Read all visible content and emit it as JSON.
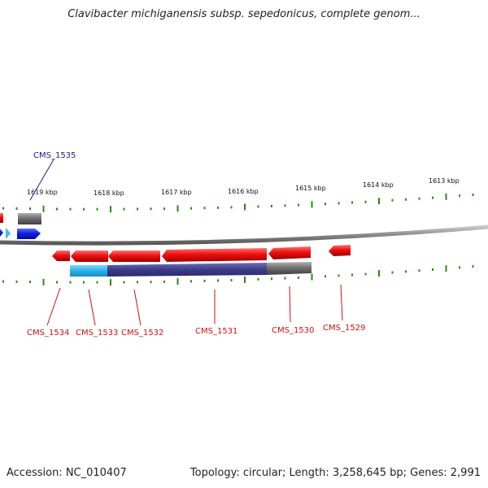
{
  "title": "Clavibacter michiganensis subsp. sepedonicus, complete genom...",
  "footer": {
    "accession": "Accession: NC_010407",
    "summary": "Topology: circular; Length: 3,258,645 bp; Genes: 2,991"
  },
  "colors": {
    "forward_gene": "#1f2fe0",
    "forward_gene_light": "#3bbcf0",
    "reverse_gene": "#e01010",
    "reverse_gene_label": "#d01010",
    "forward_gene_label": "#1a1aa0",
    "other_feature": "#707070",
    "tick": "#2a8a10",
    "backbone": "#808080",
    "band_light": "#2ab0e8",
    "band_dark": "#3c3c88"
  },
  "kbp_ticks": [
    {
      "label": "1619 kbp"
    },
    {
      "label": "1618 kbp"
    },
    {
      "label": "1617 kbp"
    },
    {
      "label": "1616 kbp"
    },
    {
      "label": "1615 kbp"
    },
    {
      "label": "1614 kbp"
    },
    {
      "label": "1613 kbp"
    }
  ],
  "gene_labels": [
    {
      "label": "CMS_1535",
      "strand": "forward"
    },
    {
      "label": "CMS_1534",
      "strand": "reverse"
    },
    {
      "label": "CMS_1533",
      "strand": "reverse"
    },
    {
      "label": "CMS_1532",
      "strand": "reverse"
    },
    {
      "label": "CMS_1531",
      "strand": "reverse"
    },
    {
      "label": "CMS_1530",
      "strand": "reverse"
    },
    {
      "label": "CMS_1529",
      "strand": "reverse"
    }
  ]
}
